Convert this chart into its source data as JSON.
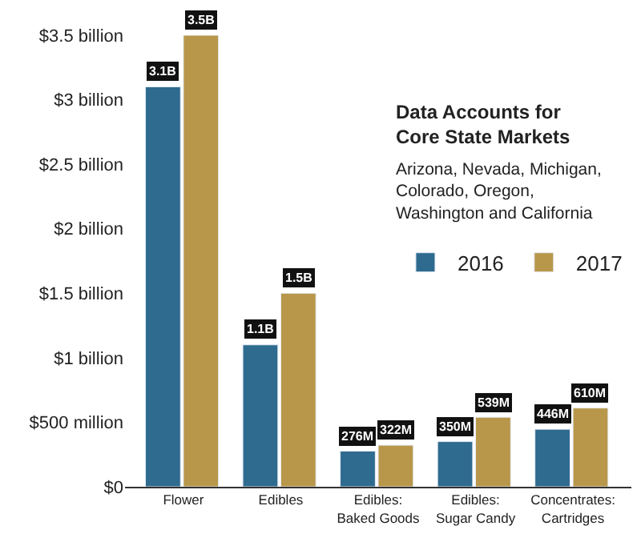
{
  "chart_data": {
    "type": "bar",
    "categories": [
      "Flower",
      "Edibles",
      "Edibles:\nBaked Goods",
      "Edibles:\nSugar Candy",
      "Concentrates:\nCartridges"
    ],
    "series": [
      {
        "name": "2016",
        "color": "#2f6a8f",
        "values": [
          3100000000,
          1100000000,
          276000000,
          350000000,
          446000000
        ],
        "value_labels": [
          "3.1B",
          "1.1B",
          "276M",
          "350M",
          "446M"
        ]
      },
      {
        "name": "2017",
        "color": "#b8974a",
        "values": [
          3500000000,
          1500000000,
          322000000,
          539000000,
          610000000
        ],
        "value_labels": [
          "3.5B",
          "1.5B",
          "322M",
          "539M",
          "610M"
        ]
      }
    ],
    "ylim": [
      0,
      3500000000
    ],
    "yticks": [
      {
        "value": 0,
        "label": "$0"
      },
      {
        "value": 500000000,
        "label": "$500 million"
      },
      {
        "value": 1000000000,
        "label": "$1 billion"
      },
      {
        "value": 1500000000,
        "label": "$1.5 billion"
      },
      {
        "value": 2000000000,
        "label": "$2 billion"
      },
      {
        "value": 2500000000,
        "label": "$2.5 billion"
      },
      {
        "value": 3000000000,
        "label": "$3 billion"
      },
      {
        "value": 3500000000,
        "label": "$3.5 billion"
      }
    ],
    "legend": "right",
    "annotations": [
      "Data Accounts for\nCore State Markets",
      "Arizona, Nevada, Michigan,\nColorado, Oregon,\nWashington and California"
    ]
  }
}
